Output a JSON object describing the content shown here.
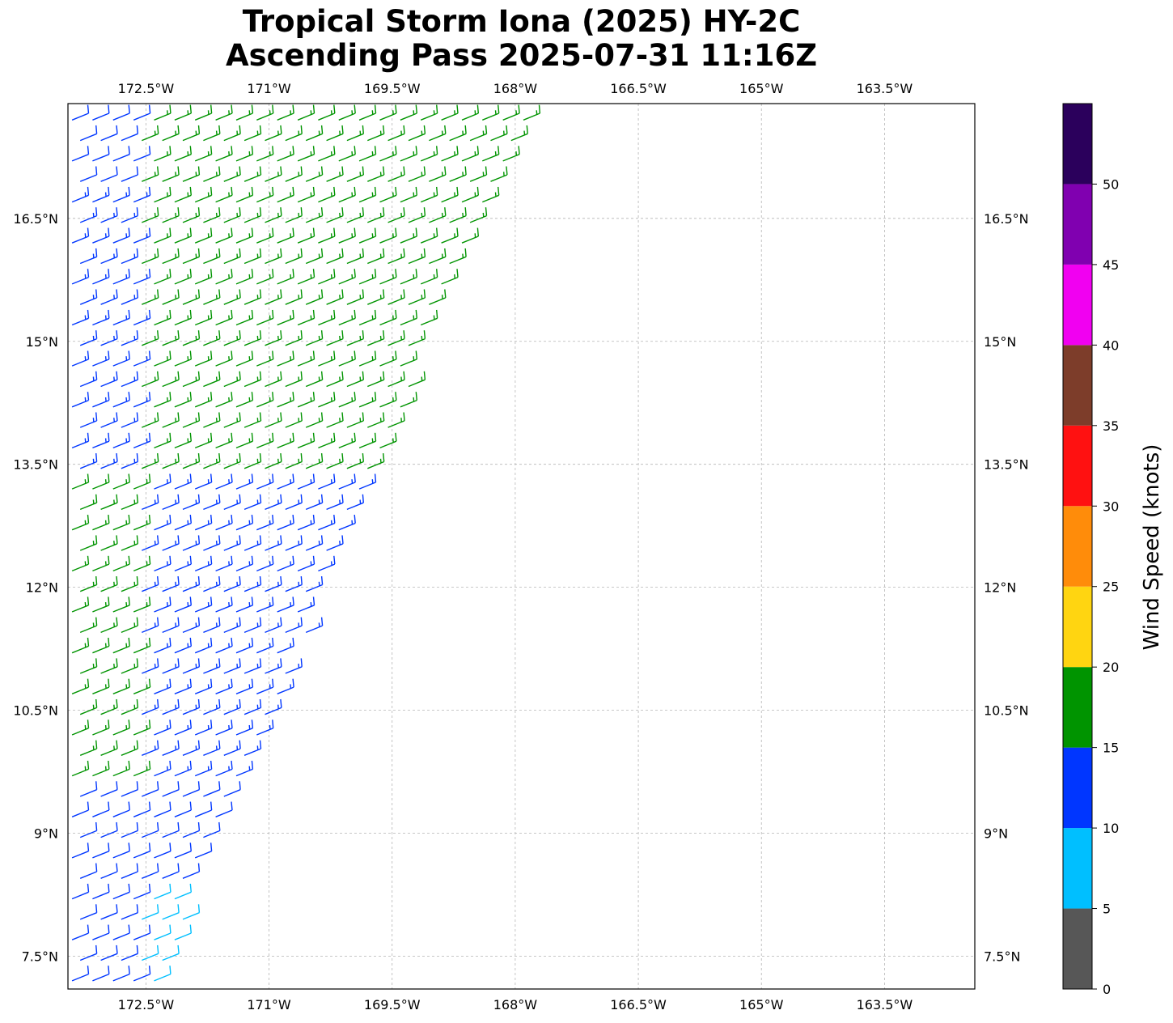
{
  "title": {
    "line1": "Tropical Storm Iona (2025) HY-2C",
    "line2": "Ascending Pass 2025-07-31 11:16Z"
  },
  "map": {
    "lon_labels": [
      "172.5°W",
      "171°W",
      "169.5°W",
      "168°W",
      "166.5°W",
      "165°W",
      "163.5°W"
    ],
    "lon_values": [
      -172.5,
      -171.0,
      -169.5,
      -168.0,
      -166.5,
      -165.0,
      -163.5
    ],
    "lat_labels": [
      "16.5°N",
      "15°N",
      "13.5°N",
      "12°N",
      "10.5°N",
      "9°N",
      "7.5°N"
    ],
    "lat_values": [
      16.5,
      15.0,
      13.5,
      12.0,
      10.5,
      9.0,
      7.5
    ],
    "lon_range": [
      -173.45,
      -162.4
    ],
    "lat_range": [
      7.1,
      17.9
    ],
    "gridlines": true,
    "projection": "PlateCarree"
  },
  "colorbar": {
    "label": "Wind Speed (knots)",
    "ticks": [
      "0",
      "5",
      "10",
      "15",
      "20",
      "25",
      "30",
      "35",
      "40",
      "45",
      "50"
    ],
    "range": [
      0,
      55
    ],
    "bins": [
      {
        "min": 0,
        "max": 5,
        "color": "#575757"
      },
      {
        "min": 5,
        "max": 10,
        "color": "#00bfff"
      },
      {
        "min": 10,
        "max": 15,
        "color": "#0036ff"
      },
      {
        "min": 15,
        "max": 20,
        "color": "#009400"
      },
      {
        "min": 20,
        "max": 25,
        "color": "#ffd511"
      },
      {
        "min": 25,
        "max": 30,
        "color": "#ff8c0a"
      },
      {
        "min": 30,
        "max": 35,
        "color": "#ff1111"
      },
      {
        "min": 35,
        "max": 40,
        "color": "#7d3d2a"
      },
      {
        "min": 40,
        "max": 45,
        "color": "#f100f1"
      },
      {
        "min": 45,
        "max": 50,
        "color": "#8000b0"
      },
      {
        "min": 50,
        "max": 55,
        "color": "#2b005c"
      }
    ]
  },
  "wind_barbs": {
    "swath_edge": {
      "lat_start": 7.1,
      "lon_start": -172.4,
      "lat_end": 17.9,
      "lon_end": -167.8
    },
    "speed_bands": [
      {
        "lat_min": 7.1,
        "lat_max": 8.4,
        "speed_kt": 8,
        "near_west_edge_speed_kt": 12
      },
      {
        "lat_min": 8.4,
        "lat_max": 9.5,
        "speed_kt": 12
      },
      {
        "lat_min": 9.5,
        "lat_max": 10.6,
        "speed_kt": 13,
        "near_west_edge_speed_kt": 17
      },
      {
        "lat_min": 10.6,
        "lat_max": 13.3,
        "speed_kt": 13,
        "near_west_edge_speed_kt": 17
      },
      {
        "lat_min": 13.3,
        "lat_max": 16.8,
        "speed_kt": 17,
        "near_west_edge_speed_kt": 14
      },
      {
        "lat_min": 16.8,
        "lat_max": 17.9,
        "speed_kt": 17,
        "near_west_edge_speed_kt": 12
      }
    ],
    "direction": "easterly"
  }
}
